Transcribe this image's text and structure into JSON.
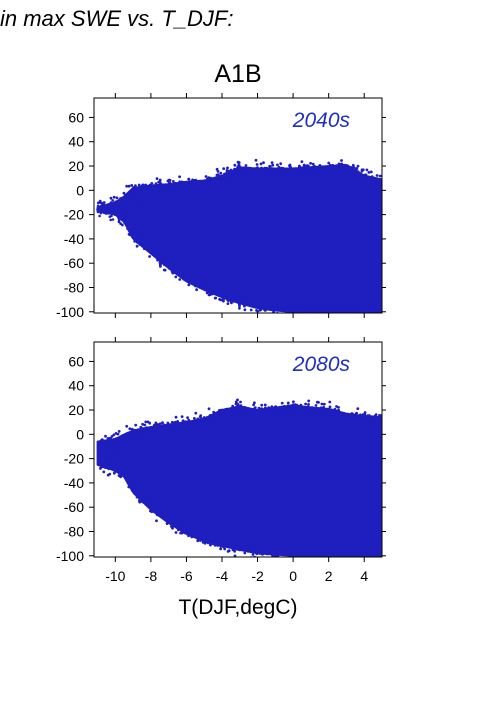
{
  "figure": {
    "heading": "in max SWE vs. T_DJF:",
    "scenario": "A1B",
    "xlabel": "T(DJF,degC)"
  },
  "colors": {
    "points": "#1f1fbf",
    "annotation": "#1f2fbf",
    "axis": "#000000"
  },
  "chart_data": [
    {
      "type": "scatter",
      "title": "A1B",
      "annotation": "2040s",
      "xlabel": "",
      "ylabel": "",
      "xlim": [
        -11.2,
        5
      ],
      "ylim": [
        -101,
        76
      ],
      "xticks": [
        -10,
        -8,
        -6,
        -4,
        -2,
        0,
        2,
        4
      ],
      "yticks": [
        60,
        40,
        20,
        0,
        -20,
        -40,
        -60,
        -80,
        -100
      ],
      "xtick_labels_shown": false,
      "grid": false,
      "envelope": {
        "upper": [
          [
            -11,
            -14
          ],
          [
            -10,
            -10
          ],
          [
            -9.5,
            -5
          ],
          [
            -9,
            2
          ],
          [
            -8,
            4
          ],
          [
            -7,
            5
          ],
          [
            -6,
            7
          ],
          [
            -5,
            8
          ],
          [
            -4,
            12
          ],
          [
            -3,
            19
          ],
          [
            -2,
            18
          ],
          [
            -1,
            18
          ],
          [
            0,
            18
          ],
          [
            1,
            19
          ],
          [
            2,
            20
          ],
          [
            3,
            21
          ],
          [
            4,
            12
          ],
          [
            5,
            9
          ]
        ],
        "lower": [
          [
            -11,
            -17
          ],
          [
            -10,
            -20
          ],
          [
            -9.5,
            -26
          ],
          [
            -9,
            -40
          ],
          [
            -8,
            -52
          ],
          [
            -7,
            -64
          ],
          [
            -6,
            -75
          ],
          [
            -5,
            -82
          ],
          [
            -4,
            -88
          ],
          [
            -3,
            -93
          ],
          [
            -2,
            -97
          ],
          [
            -1,
            -99
          ],
          [
            0,
            -100
          ],
          [
            1,
            -100
          ],
          [
            2,
            -100
          ],
          [
            3,
            -100
          ],
          [
            4,
            -100
          ],
          [
            5,
            -100
          ]
        ]
      }
    },
    {
      "type": "scatter",
      "title": "",
      "annotation": "2080s",
      "xlabel": "T(DJF,degC)",
      "ylabel": "",
      "xlim": [
        -11.2,
        5
      ],
      "ylim": [
        -101,
        76
      ],
      "xticks": [
        -10,
        -8,
        -6,
        -4,
        -2,
        0,
        2,
        4
      ],
      "xtick_labels": [
        "-10",
        "-8",
        "-6",
        "-4",
        "-2",
        "0",
        "2",
        "4"
      ],
      "yticks": [
        60,
        40,
        20,
        0,
        -20,
        -40,
        -60,
        -80,
        -100
      ],
      "xtick_labels_shown": true,
      "grid": false,
      "envelope": {
        "upper": [
          [
            -11,
            -6
          ],
          [
            -10,
            -4
          ],
          [
            -9.5,
            0
          ],
          [
            -9,
            3
          ],
          [
            -8,
            6
          ],
          [
            -7,
            8
          ],
          [
            -6,
            10
          ],
          [
            -5,
            13
          ],
          [
            -4,
            20
          ],
          [
            -3,
            23
          ],
          [
            -2,
            20
          ],
          [
            -1,
            22
          ],
          [
            0,
            24
          ],
          [
            1,
            22
          ],
          [
            2,
            21
          ],
          [
            3,
            17
          ],
          [
            4,
            15
          ],
          [
            5,
            14
          ]
        ],
        "lower": [
          [
            -11,
            -25
          ],
          [
            -10,
            -30
          ],
          [
            -9.5,
            -35
          ],
          [
            -9,
            -48
          ],
          [
            -8,
            -62
          ],
          [
            -7,
            -73
          ],
          [
            -6,
            -82
          ],
          [
            -5,
            -88
          ],
          [
            -4,
            -92
          ],
          [
            -3,
            -95
          ],
          [
            -2,
            -98
          ],
          [
            -1,
            -99
          ],
          [
            0,
            -100
          ],
          [
            1,
            -100
          ],
          [
            2,
            -100
          ],
          [
            3,
            -100
          ],
          [
            4,
            -100
          ],
          [
            5,
            -100
          ]
        ]
      }
    }
  ]
}
